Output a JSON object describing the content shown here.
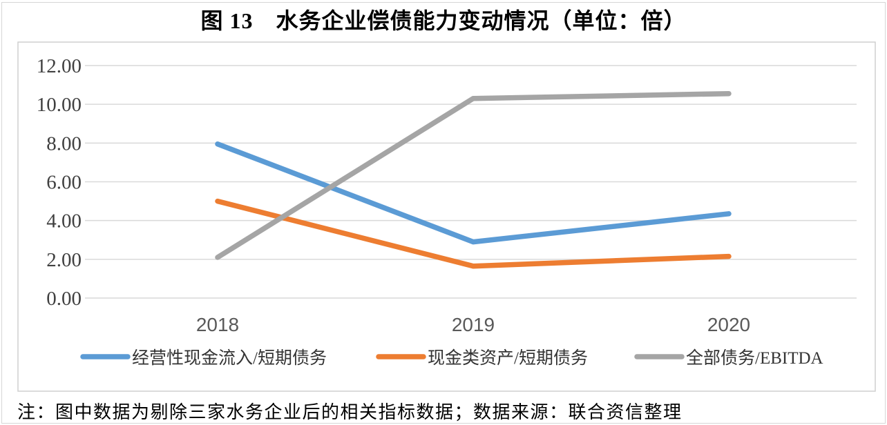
{
  "title": "图 13　水务企业偿债能力变动情况（单位：倍）",
  "note": "注：图中数据为剔除三家水务企业后的相关指标数据；数据来源：联合资信整理",
  "colors": {
    "grid": "#d9d9d9",
    "chart_border": "#cfcfcf",
    "y_label": "#3f3f3f",
    "x_label": "#595959"
  },
  "chart_data": {
    "type": "line",
    "title": "图 13　水务企业偿债能力变动情况（单位：倍）",
    "categories": [
      "2018",
      "2019",
      "2020"
    ],
    "series": [
      {
        "name": "经营性现金流入/短期债务",
        "color": "#5B9BD5",
        "values": [
          7.95,
          2.9,
          4.35
        ]
      },
      {
        "name": "现金类资产/短期债务",
        "color": "#ED7D31",
        "values": [
          5.0,
          1.65,
          2.15
        ]
      },
      {
        "name": "全部债务/EBITDA",
        "color": "#A5A5A5",
        "values": [
          2.1,
          10.3,
          10.55
        ]
      }
    ],
    "xlabel": "",
    "ylabel": "",
    "ylim": [
      0,
      12
    ],
    "ytick_step": 2,
    "yticks": [
      "0.00",
      "2.00",
      "4.00",
      "6.00",
      "8.00",
      "10.00",
      "12.00"
    ],
    "grid": true,
    "legend_position": "bottom"
  }
}
